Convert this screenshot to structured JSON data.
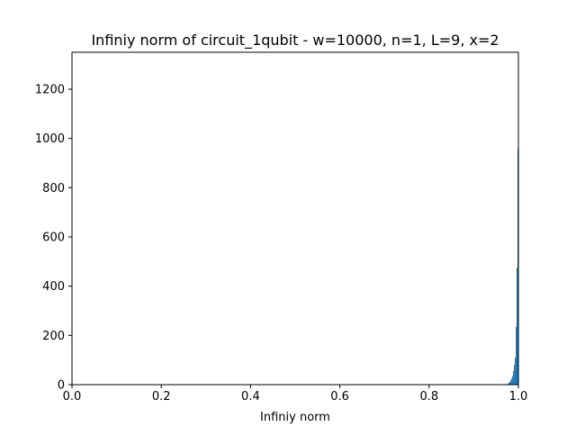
{
  "chart_data": {
    "type": "bar",
    "title": "Infiniy norm of circuit_1qubit - w=10000, n=1, L=9, x=2",
    "xlabel": "Infiniy norm",
    "ylabel": "",
    "xlim": [
      0.0,
      1.0
    ],
    "ylim": [
      0,
      1350
    ],
    "x_ticks": [
      {
        "value": 0.0,
        "label": "0.0"
      },
      {
        "value": 0.2,
        "label": "0.2"
      },
      {
        "value": 0.4,
        "label": "0.4"
      },
      {
        "value": 0.6,
        "label": "0.6"
      },
      {
        "value": 0.8,
        "label": "0.8"
      },
      {
        "value": 1.0,
        "label": "1.0"
      }
    ],
    "y_ticks": [
      {
        "value": 0,
        "label": "0"
      },
      {
        "value": 200,
        "label": "200"
      },
      {
        "value": 400,
        "label": "400"
      },
      {
        "value": 600,
        "label": "600"
      },
      {
        "value": 800,
        "label": "800"
      },
      {
        "value": 1000,
        "label": "1000"
      },
      {
        "value": 1200,
        "label": "1200"
      }
    ],
    "grid": false,
    "legend": "none",
    "bar_color": "#1f77b4",
    "bins": [
      {
        "x": 0.977,
        "y": 5
      },
      {
        "x": 0.979,
        "y": 8
      },
      {
        "x": 0.981,
        "y": 12
      },
      {
        "x": 0.983,
        "y": 18
      },
      {
        "x": 0.985,
        "y": 25
      },
      {
        "x": 0.987,
        "y": 35
      },
      {
        "x": 0.989,
        "y": 55
      },
      {
        "x": 0.991,
        "y": 80
      },
      {
        "x": 0.993,
        "y": 110
      },
      {
        "x": 0.995,
        "y": 235
      },
      {
        "x": 0.997,
        "y": 475
      },
      {
        "x": 0.999,
        "y": 960
      }
    ],
    "bin_width": 0.002
  }
}
